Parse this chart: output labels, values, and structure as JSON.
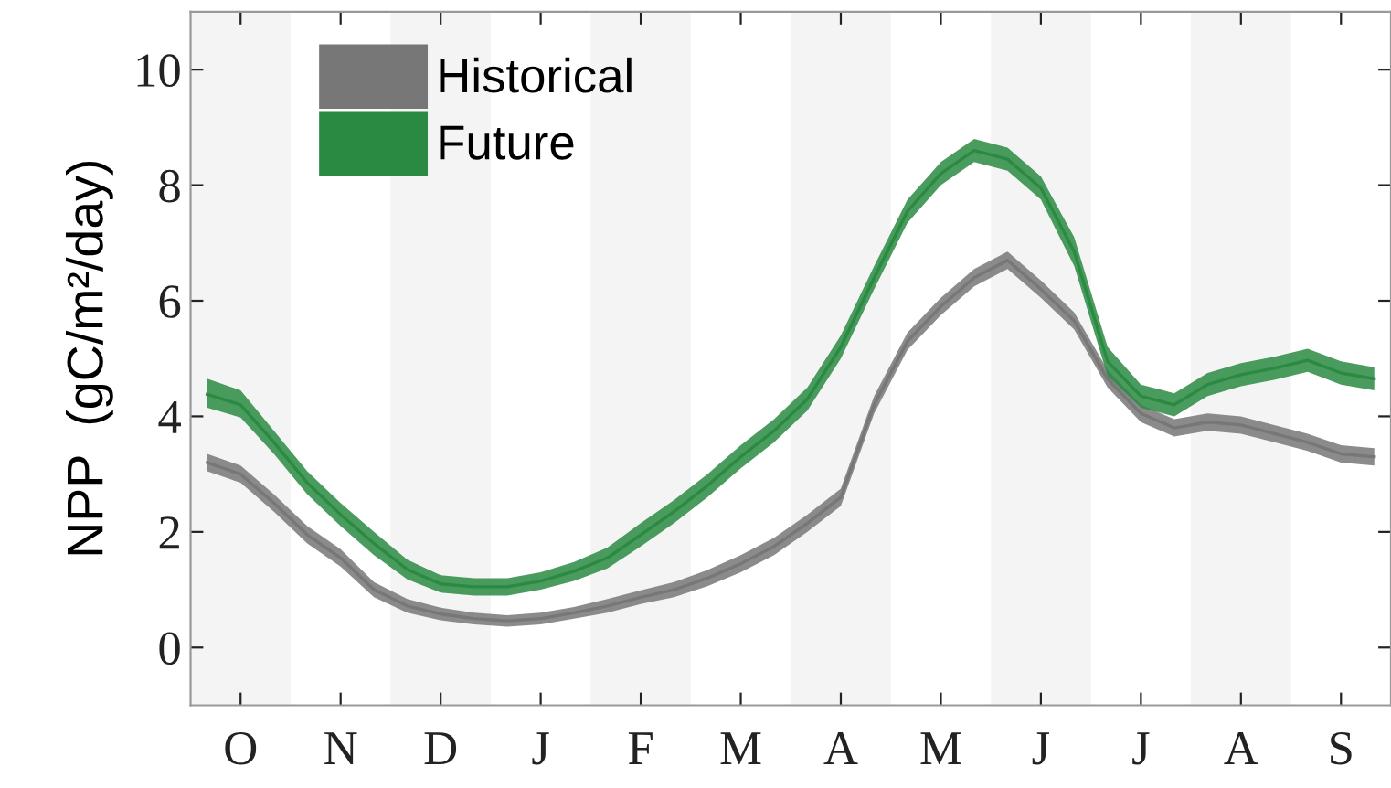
{
  "chart_data": {
    "type": "line",
    "ylabel": "NPP  (gC/m²/day)",
    "categories": [
      null,
      "O",
      null,
      null,
      "N",
      null,
      null,
      "D",
      null,
      null,
      "J",
      null,
      null,
      "F",
      null,
      null,
      "M",
      null,
      null,
      "A",
      null,
      null,
      "M",
      null,
      null,
      "J",
      null,
      null,
      "J",
      null,
      null,
      "A",
      null,
      null,
      "S",
      null
    ],
    "ylim": [
      -1,
      11
    ],
    "yticks": [
      0,
      2,
      4,
      6,
      8,
      10
    ],
    "grid": false,
    "legend": "top left",
    "marker": "none",
    "line_style": "solid",
    "series": [
      {
        "name": "Historical",
        "color": "#777777",
        "values": [
          3.2,
          3.0,
          2.5,
          1.95,
          1.55,
          1.0,
          0.72,
          0.58,
          0.5,
          0.46,
          0.5,
          0.6,
          0.72,
          0.87,
          1.0,
          1.2,
          1.45,
          1.75,
          2.15,
          2.6,
          4.2,
          5.3,
          5.9,
          6.4,
          6.7,
          6.2,
          5.65,
          4.65,
          4.05,
          3.8,
          3.9,
          3.85,
          3.7,
          3.55,
          3.35,
          3.3
        ],
        "lower": [
          3.05,
          2.85,
          2.35,
          1.8,
          1.4,
          0.87,
          0.6,
          0.47,
          0.4,
          0.36,
          0.4,
          0.5,
          0.6,
          0.75,
          0.87,
          1.06,
          1.3,
          1.6,
          2.0,
          2.45,
          4.05,
          5.15,
          5.75,
          6.25,
          6.55,
          6.05,
          5.5,
          4.5,
          3.9,
          3.65,
          3.75,
          3.7,
          3.55,
          3.4,
          3.2,
          3.15
        ],
        "upper": [
          3.35,
          3.15,
          2.65,
          2.1,
          1.7,
          1.13,
          0.84,
          0.69,
          0.6,
          0.56,
          0.6,
          0.7,
          0.84,
          0.99,
          1.13,
          1.34,
          1.6,
          1.9,
          2.3,
          2.75,
          4.35,
          5.45,
          6.05,
          6.55,
          6.85,
          6.35,
          5.8,
          4.8,
          4.2,
          3.95,
          4.05,
          4.0,
          3.85,
          3.7,
          3.5,
          3.45
        ]
      },
      {
        "name": "Future",
        "color": "#2a8a42",
        "values": [
          4.38,
          4.2,
          3.55,
          2.85,
          2.3,
          1.8,
          1.35,
          1.1,
          1.05,
          1.05,
          1.15,
          1.32,
          1.55,
          1.95,
          2.35,
          2.8,
          3.3,
          3.75,
          4.3,
          5.2,
          6.4,
          7.55,
          8.2,
          8.6,
          8.45,
          7.95,
          6.85,
          4.95,
          4.35,
          4.2,
          4.55,
          4.72,
          4.83,
          4.97,
          4.75,
          4.65
        ],
        "lower": [
          4.15,
          3.98,
          3.35,
          2.65,
          2.1,
          1.6,
          1.18,
          0.95,
          0.9,
          0.9,
          1.0,
          1.15,
          1.37,
          1.75,
          2.15,
          2.6,
          3.1,
          3.55,
          4.1,
          5.0,
          6.2,
          7.35,
          8.0,
          8.4,
          8.25,
          7.75,
          6.6,
          4.7,
          4.15,
          4.0,
          4.35,
          4.52,
          4.63,
          4.77,
          4.55,
          4.45
        ],
        "upper": [
          4.65,
          4.45,
          3.75,
          3.05,
          2.5,
          2.0,
          1.52,
          1.25,
          1.2,
          1.2,
          1.3,
          1.48,
          1.73,
          2.15,
          2.55,
          3.0,
          3.5,
          3.95,
          4.5,
          5.4,
          6.6,
          7.75,
          8.4,
          8.8,
          8.65,
          8.15,
          7.1,
          5.2,
          4.55,
          4.4,
          4.75,
          4.92,
          5.03,
          5.17,
          4.95,
          4.85
        ]
      }
    ]
  }
}
